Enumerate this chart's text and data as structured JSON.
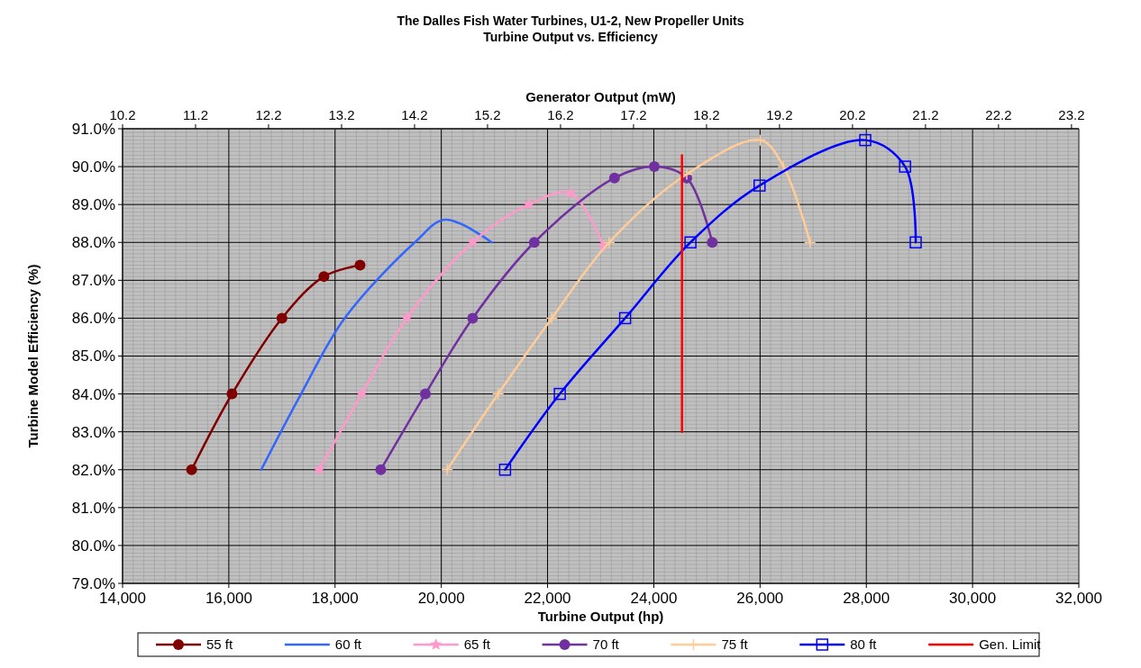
{
  "chart_data": {
    "type": "line",
    "title": "The Dalles Fish Water Turbines, U1-2, New Propeller Units",
    "subtitle": "Turbine Output vs. Efficiency",
    "xlabel": "Turbine Output (hp)",
    "ylabel": "Turbine Model Efficiency (%)",
    "x2label": "Generator Output (mW)",
    "xlim": [
      14000,
      32000
    ],
    "xticks": [
      {
        "value": 14000,
        "label": "14,000"
      },
      {
        "value": 16000,
        "label": "16,000"
      },
      {
        "value": 18000,
        "label": "18,000"
      },
      {
        "value": 20000,
        "label": "20,000"
      },
      {
        "value": 22000,
        "label": "22,000"
      },
      {
        "value": 24000,
        "label": "24,000"
      },
      {
        "value": 26000,
        "label": "26,000"
      },
      {
        "value": 28000,
        "label": "28,000"
      },
      {
        "value": 30000,
        "label": "30,000"
      },
      {
        "value": 32000,
        "label": "32,000"
      }
    ],
    "x2lim": [
      10.2,
      23.3
    ],
    "x2ticks": [
      10.2,
      11.2,
      12.2,
      13.2,
      14.2,
      15.2,
      16.2,
      17.2,
      18.2,
      19.2,
      20.2,
      21.2,
      22.2,
      23.2
    ],
    "ylim": [
      79,
      91
    ],
    "yticks": [
      {
        "value": 79,
        "label": "79.0%"
      },
      {
        "value": 80,
        "label": "80.0%"
      },
      {
        "value": 81,
        "label": "81.0%"
      },
      {
        "value": 82,
        "label": "82.0%"
      },
      {
        "value": 83,
        "label": "83.0%"
      },
      {
        "value": 84,
        "label": "84.0%"
      },
      {
        "value": 85,
        "label": "85.0%"
      },
      {
        "value": 86,
        "label": "86.0%"
      },
      {
        "value": 87,
        "label": "87.0%"
      },
      {
        "value": 88,
        "label": "88.0%"
      },
      {
        "value": 89,
        "label": "89.0%"
      },
      {
        "value": 90,
        "label": "90.0%"
      },
      {
        "value": 91,
        "label": "91.0%"
      }
    ],
    "grid": true,
    "legend": "bottom",
    "series": [
      {
        "name": "55 ft",
        "color": "#800000",
        "marker": "circle",
        "x": [
          15300,
          16060,
          17000,
          17790,
          18470
        ],
        "values": [
          82,
          84,
          86,
          87.1,
          87.4
        ]
      },
      {
        "name": "60 ft",
        "color": "#3366ff",
        "marker": "none",
        "x": [
          16610,
          17360,
          18180,
          19500,
          20070,
          20950
        ],
        "values": [
          82,
          84,
          86,
          88,
          88.6,
          88
        ]
      },
      {
        "name": "65 ft",
        "color": "#ff99cc",
        "marker": "star",
        "x": [
          17700,
          18500,
          19350,
          20590,
          21650,
          22430,
          23050
        ],
        "values": [
          82,
          84,
          86,
          88,
          89,
          89.3,
          87.9
        ]
      },
      {
        "name": "70 ft",
        "color": "#7030a0",
        "marker": "circle",
        "x": [
          18860,
          19700,
          20590,
          21750,
          23260,
          24010,
          24620,
          25100
        ],
        "values": [
          82,
          84,
          86,
          88,
          89.7,
          90,
          89.7,
          88
        ]
      },
      {
        "name": "75 ft",
        "color": "#ffcc99",
        "marker": "cross",
        "x": [
          20110,
          21070,
          22080,
          23160,
          24620,
          26000,
          26440,
          26940
        ],
        "values": [
          82,
          84,
          86,
          88,
          89.8,
          90.7,
          90,
          88
        ]
      },
      {
        "name": "80 ft",
        "color": "#0000ff",
        "marker": "square",
        "x": [
          21200,
          22230,
          23460,
          24690,
          25990,
          27980,
          28730,
          28930
        ],
        "values": [
          82,
          84,
          86,
          88,
          89.5,
          90.7,
          90,
          88
        ]
      },
      {
        "name": "Gen. Limit",
        "color": "#ff0000",
        "marker": "none",
        "x": [
          24530,
          24530
        ],
        "values": [
          83,
          90.3
        ]
      }
    ]
  }
}
